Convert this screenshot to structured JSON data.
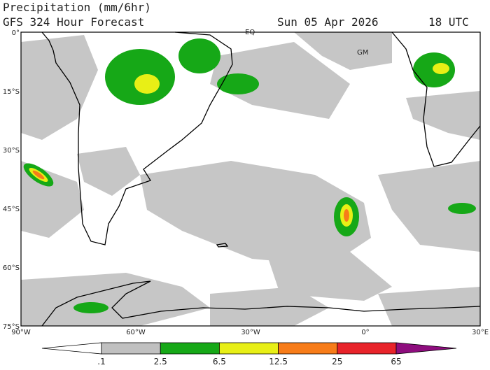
{
  "header": {
    "title": "Precipitation (mm/6hr)",
    "subtitle": "GFS 324 Hour Forecast",
    "date": "Sun 05 Apr 2026",
    "time": "18 UTC"
  },
  "map": {
    "lat_labels": [
      "0°",
      "15°S",
      "30°S",
      "45°S",
      "60°S",
      "75°S"
    ],
    "lon_labels": [
      "90°W",
      "60°W",
      "30°W",
      "0°",
      "30°E"
    ],
    "markers": [
      "EQ",
      "GM"
    ]
  },
  "colorbar": {
    "labels": [
      ".1",
      "2.5",
      "6.5",
      "12.5",
      "25",
      "65"
    ],
    "colors": [
      "#ffffff",
      "#c0c0c0",
      "#16a817",
      "#e8ef16",
      "#f77c19",
      "#e8232a",
      "#8e0d7e"
    ]
  }
}
